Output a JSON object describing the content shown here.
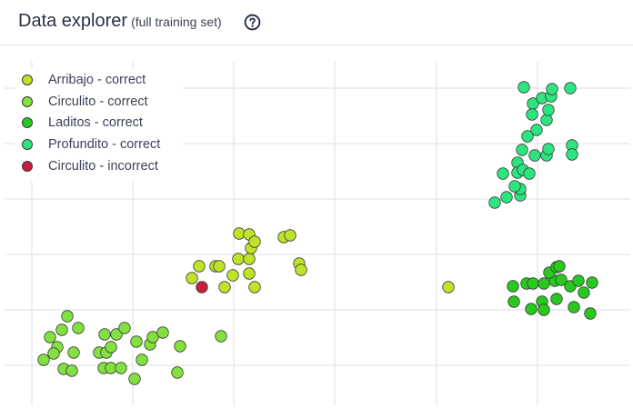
{
  "header": {
    "title": "Data explorer",
    "subtitle": "(full training set)",
    "help_icon": "question-circle-icon"
  },
  "colors": {
    "Arribajo - correct": "#bfe328",
    "Circulito - correct": "#82e03f",
    "Laditos - correct": "#27c91f",
    "Profundito - correct": "#2de57f",
    "Circulito - incorrect": "#c51f39"
  },
  "legend": [
    {
      "label": "Arribajo - correct",
      "key": "Arribajo - correct"
    },
    {
      "label": "Circulito - correct",
      "key": "Circulito - correct"
    },
    {
      "label": "Laditos - correct",
      "key": "Laditos - correct"
    },
    {
      "label": "Profundito - correct",
      "key": "Profundito - correct"
    },
    {
      "label": "Circulito - incorrect",
      "key": "Circulito - incorrect"
    }
  ],
  "chart_data": {
    "type": "scatter",
    "axes_labels_shown": false,
    "grid": true,
    "legend_position": "top-left",
    "series": [
      {
        "name": "Arribajo - correct",
        "points": [
          [
            211,
            256
          ],
          [
            219,
            243
          ],
          [
            237,
            243
          ],
          [
            241,
            243
          ],
          [
            247,
            266
          ],
          [
            256,
            253
          ],
          [
            262,
            235
          ],
          [
            274,
            235
          ],
          [
            263,
            207
          ],
          [
            274,
            208
          ],
          [
            276,
            223
          ],
          [
            280,
            216
          ],
          [
            274,
            251
          ],
          [
            280,
            266
          ],
          [
            312,
            211
          ],
          [
            319,
            209
          ],
          [
            329,
            240
          ],
          [
            331,
            247
          ],
          [
            493,
            266
          ]
        ]
      },
      {
        "name": "Circulito - correct",
        "points": [
          [
            74,
            298
          ],
          [
            68,
            313
          ],
          [
            86,
            311
          ],
          [
            55,
            321
          ],
          [
            63,
            332
          ],
          [
            48,
            346
          ],
          [
            59,
            339
          ],
          [
            81,
            338
          ],
          [
            70,
            356
          ],
          [
            79,
            358
          ],
          [
            115,
            318
          ],
          [
            128,
            318
          ],
          [
            137,
            311
          ],
          [
            109,
            338
          ],
          [
            117,
            338
          ],
          [
            122,
            332
          ],
          [
            114,
            355
          ],
          [
            122,
            355
          ],
          [
            133,
            355
          ],
          [
            148,
            367
          ],
          [
            156,
            346
          ],
          [
            150,
            326
          ],
          [
            165,
            329
          ],
          [
            168,
            321
          ],
          [
            179,
            316
          ],
          [
            198,
            331
          ],
          [
            195,
            360
          ],
          [
            243,
            320
          ]
        ]
      },
      {
        "name": "Laditos - correct",
        "points": [
          [
            564,
            265
          ],
          [
            579,
            262
          ],
          [
            586,
            262
          ],
          [
            598,
            262
          ],
          [
            610,
            259
          ],
          [
            604,
            250
          ],
          [
            612,
            244
          ],
          [
            615,
            243
          ],
          [
            617,
            258
          ],
          [
            627,
            265
          ],
          [
            636,
            259
          ],
          [
            651,
            261
          ],
          [
            642,
            272
          ],
          [
            631,
            288
          ],
          [
            612,
            279
          ],
          [
            596,
            282
          ],
          [
            584,
            290
          ],
          [
            598,
            291
          ],
          [
            565,
            282
          ],
          [
            649,
            295
          ]
        ]
      },
      {
        "name": "Profundito - correct",
        "points": [
          [
            576,
            46
          ],
          [
            586,
            64
          ],
          [
            596,
            58
          ],
          [
            606,
            56
          ],
          [
            607,
            48
          ],
          [
            627,
            47
          ],
          [
            585,
            76
          ],
          [
            601,
            82
          ],
          [
            603,
            71
          ],
          [
            590,
            93
          ],
          [
            580,
            100
          ],
          [
            574,
            115
          ],
          [
            588,
            121
          ],
          [
            601,
            121
          ],
          [
            603,
            114
          ],
          [
            629,
            110
          ],
          [
            629,
            120
          ],
          [
            569,
            129
          ],
          [
            569,
            140
          ],
          [
            575,
            137
          ],
          [
            582,
            141
          ],
          [
            553,
            141
          ],
          [
            557,
            167
          ],
          [
            544,
            173
          ],
          [
            572,
            165
          ],
          [
            572,
            158
          ],
          [
            566,
            155
          ]
        ]
      },
      {
        "name": "Circulito - incorrect",
        "points": [
          [
            222,
            266
          ]
        ]
      }
    ]
  }
}
